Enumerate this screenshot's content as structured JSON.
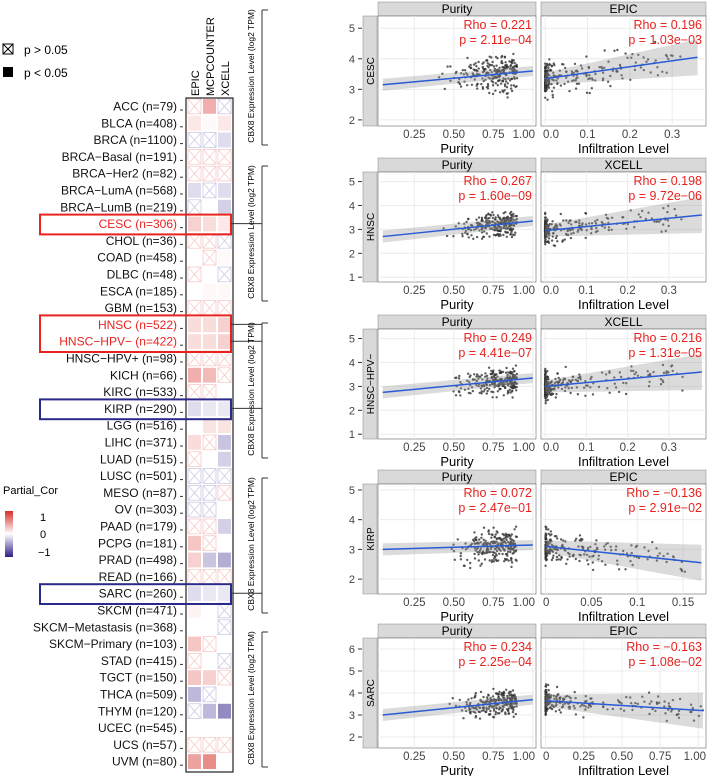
{
  "legend": {
    "ns_label": "p > 0.05",
    "sig_label": "p < 0.05",
    "scale_title": "Partial_Cor",
    "scale_ticks": [
      "1",
      "0",
      "−1"
    ]
  },
  "chart_data": [
    {
      "type": "heatmap",
      "columns": [
        "EPIC",
        "MCPCOUNTER",
        "XCELL"
      ],
      "rows": [
        {
          "label": "ACC (n=79)",
          "v": [
            0.1,
            0.35,
            -0.1
          ],
          "sig": [
            0,
            1,
            0
          ]
        },
        {
          "label": "BLCA (n=408)",
          "v": [
            0.1,
            0.02,
            0.1
          ],
          "sig": [
            1,
            1,
            1
          ]
        },
        {
          "label": "BRCA (n=1100)",
          "v": [
            -0.05,
            -0.05,
            -0.15
          ],
          "sig": [
            0,
            0,
            1
          ]
        },
        {
          "label": "BRCA−Basal (n=191)",
          "v": [
            0.05,
            0.05,
            0.05
          ],
          "sig": [
            0,
            0,
            0
          ]
        },
        {
          "label": "BRCA−Her2 (n=82)",
          "v": [
            0.05,
            0.05,
            0.05
          ],
          "sig": [
            0,
            0,
            0
          ]
        },
        {
          "label": "BRCA−LumA (n=568)",
          "v": [
            -0.15,
            -0.08,
            -0.15
          ],
          "sig": [
            1,
            0,
            1
          ]
        },
        {
          "label": "BRCA−LumB (n=219)",
          "v": [
            -0.05,
            0,
            -0.2
          ],
          "sig": [
            0,
            1,
            1
          ]
        },
        {
          "label": "CESC (n=306)",
          "v": [
            0.2,
            0.15,
            0.1
          ],
          "sig": [
            1,
            1,
            1
          ],
          "highlight": "red"
        },
        {
          "label": "CHOL (n=36)",
          "v": [
            0.2,
            0.15,
            -0.1
          ],
          "sig": [
            0,
            0,
            0
          ]
        },
        {
          "label": "COAD (n=458)",
          "v": [
            0,
            0.05,
            0.02
          ],
          "sig": [
            1,
            0,
            1
          ]
        },
        {
          "label": "DLBC (n=48)",
          "v": [
            0.05,
            0,
            -0.05
          ],
          "sig": [
            0,
            1,
            0
          ]
        },
        {
          "label": "ESCA (n=185)",
          "v": [
            0,
            0.03,
            0.03
          ],
          "sig": [
            1,
            1,
            1
          ]
        },
        {
          "label": "GBM (n=153)",
          "v": [
            0.05,
            0.05,
            0.05
          ],
          "sig": [
            0,
            0,
            0
          ]
        },
        {
          "label": "HNSC (n=522)",
          "v": [
            0.15,
            0.15,
            0.2
          ],
          "sig": [
            1,
            1,
            1
          ],
          "highlight": "red"
        },
        {
          "label": "HNSC−HPV− (n=422)",
          "v": [
            0.15,
            0.15,
            0.2
          ],
          "sig": [
            1,
            1,
            1
          ],
          "highlight": "red"
        },
        {
          "label": "HNSC−HPV+ (n=98)",
          "v": [
            0.05,
            0.05,
            0.05
          ],
          "sig": [
            0,
            0,
            0
          ]
        },
        {
          "label": "KICH (n=66)",
          "v": [
            0.35,
            0.3,
            0.1
          ],
          "sig": [
            1,
            1,
            0
          ]
        },
        {
          "label": "KIRC (n=533)",
          "v": [
            0.05,
            0.05,
            0
          ],
          "sig": [
            0,
            0,
            1
          ]
        },
        {
          "label": "KIRP (n=290)",
          "v": [
            -0.15,
            -0.1,
            -0.1
          ],
          "sig": [
            1,
            1,
            1
          ],
          "highlight": "blue"
        },
        {
          "label": "LGG (n=516)",
          "v": [
            0,
            0.12,
            0.12
          ],
          "sig": [
            1,
            1,
            1
          ]
        },
        {
          "label": "LIHC (n=371)",
          "v": [
            0.15,
            0.1,
            -0.25
          ],
          "sig": [
            1,
            0,
            1
          ]
        },
        {
          "label": "LUAD (n=515)",
          "v": [
            0.1,
            0,
            -0.2
          ],
          "sig": [
            0,
            1,
            1
          ]
        },
        {
          "label": "LUSC (n=501)",
          "v": [
            -0.05,
            -0.05,
            -0.05
          ],
          "sig": [
            0,
            0,
            0
          ]
        },
        {
          "label": "MESO (n=87)",
          "v": [
            -0.15,
            -0.15,
            0.05
          ],
          "sig": [
            0,
            0,
            0
          ]
        },
        {
          "label": "OV (n=303)",
          "v": [
            -0.05,
            -0.05,
            0
          ],
          "sig": [
            0,
            0,
            1
          ]
        },
        {
          "label": "PAAD (n=179)",
          "v": [
            0.05,
            0.05,
            -0.2
          ],
          "sig": [
            0,
            0,
            1
          ]
        },
        {
          "label": "PCPG (n=181)",
          "v": [
            0.25,
            0.2,
            0
          ],
          "sig": [
            1,
            0,
            1
          ]
        },
        {
          "label": "PRAD (n=498)",
          "v": [
            0.2,
            -0.25,
            -0.35
          ],
          "sig": [
            1,
            1,
            1
          ]
        },
        {
          "label": "READ (n=166)",
          "v": [
            0.1,
            0.1,
            0.1
          ],
          "sig": [
            0,
            0,
            0
          ]
        },
        {
          "label": "SARC (n=260)",
          "v": [
            -0.15,
            -0.1,
            -0.1
          ],
          "sig": [
            1,
            1,
            1
          ],
          "highlight": "blue"
        },
        {
          "label": "SKCM (n=471)",
          "v": [
            0.05,
            0,
            -0.05
          ],
          "sig": [
            1,
            1,
            0
          ]
        },
        {
          "label": "SKCM−Metastasis (n=368)",
          "v": [
            0,
            0,
            -0.1
          ],
          "sig": [
            1,
            1,
            0
          ]
        },
        {
          "label": "SKCM−Primary (n=103)",
          "v": [
            0.25,
            0.2,
            0
          ],
          "sig": [
            1,
            0,
            1
          ]
        },
        {
          "label": "STAD (n=415)",
          "v": [
            0.05,
            0,
            -0.05
          ],
          "sig": [
            0,
            1,
            0
          ]
        },
        {
          "label": "TGCT (n=150)",
          "v": [
            0.25,
            0.2,
            0.1
          ],
          "sig": [
            1,
            1,
            0
          ]
        },
        {
          "label": "THCA (n=509)",
          "v": [
            -0.3,
            -0.05,
            0
          ],
          "sig": [
            1,
            0,
            1
          ]
        },
        {
          "label": "THYM (n=120)",
          "v": [
            -0.1,
            -0.3,
            -0.5
          ],
          "sig": [
            0,
            1,
            1
          ]
        },
        {
          "label": "UCEC (n=545)",
          "v": [
            0,
            0,
            0
          ],
          "sig": [
            1,
            1,
            1
          ]
        },
        {
          "label": "UCS (n=57)",
          "v": [
            0.2,
            0.2,
            0.1
          ],
          "sig": [
            0,
            0,
            0
          ]
        },
        {
          "label": "UVM (n=80)",
          "v": [
            0.4,
            0.5,
            0
          ],
          "sig": [
            1,
            1,
            1
          ]
        }
      ],
      "colors": {
        "pos": "#d73027",
        "neg": "#3b2a8f"
      }
    },
    {
      "type": "scatter",
      "ylabel": "CBX8 Expression Level (log2 TPM)",
      "line_color": "#2a5bd7",
      "point_color": "#333333",
      "annot_color": "#e8231f",
      "panels": [
        {
          "cancer": "CESC",
          "ylim": [
            1.8,
            5.4
          ],
          "yticks": [
            "2",
            "3",
            "4",
            "5"
          ],
          "left": {
            "strip": "Purity",
            "xlabel": "Purity",
            "xlim": [
              0.02,
              1.02
            ],
            "xticks": [
              "0.25",
              "0.50",
              "0.75",
              "1.00"
            ],
            "rho": "Rho = 0.221",
            "p": "p = 2.11e−04",
            "fit": [
              [
                0.05,
                3.15
              ],
              [
                1.0,
                3.6
              ]
            ]
          },
          "right": {
            "strip": "EPIC",
            "xlabel": "Infiltration Level",
            "xlim": [
              -0.01,
              0.38
            ],
            "xticks": [
              "0.0",
              "0.1",
              "0.2",
              "0.3"
            ],
            "rho": "Rho = 0.196",
            "p": "p = 1.03e−03",
            "fit": [
              [
                0.0,
                3.35
              ],
              [
                0.36,
                4.05
              ]
            ]
          }
        },
        {
          "cancer": "HNSC",
          "ylim": [
            0.8,
            5.4
          ],
          "yticks": [
            "1",
            "2",
            "3",
            "4",
            "5"
          ],
          "left": {
            "strip": "Purity",
            "xlabel": "Purity",
            "xlim": [
              0.02,
              1.02
            ],
            "xticks": [
              "0.25",
              "0.50",
              "0.75",
              "1.00"
            ],
            "rho": "Rho = 0.267",
            "p": "p = 1.60e−09",
            "fit": [
              [
                0.05,
                2.7
              ],
              [
                1.0,
                3.35
              ]
            ]
          },
          "right": {
            "strip": "XCELL",
            "xlabel": "Infiltration Level",
            "xlim": [
              -0.01,
              0.39
            ],
            "xticks": [
              "0.0",
              "0.1",
              "0.2",
              "0.3"
            ],
            "rho": "Rho = 0.198",
            "p": "p = 9.72e−06",
            "fit": [
              [
                0.0,
                2.95
              ],
              [
                0.38,
                3.6
              ]
            ]
          }
        },
        {
          "cancer": "HNSC−HPV−",
          "ylim": [
            0.8,
            5.4
          ],
          "yticks": [
            "1",
            "2",
            "3",
            "4",
            "5"
          ],
          "left": {
            "strip": "Purity",
            "xlabel": "Purity",
            "xlim": [
              0.02,
              1.02
            ],
            "xticks": [
              "0.25",
              "0.50",
              "0.75",
              "1.00"
            ],
            "rho": "Rho = 0.249",
            "p": "p = 4.41e−07",
            "fit": [
              [
                0.05,
                2.75
              ],
              [
                1.0,
                3.35
              ]
            ]
          },
          "right": {
            "strip": "XCELL",
            "xlabel": "Infiltration Level",
            "xlim": [
              -0.01,
              0.39
            ],
            "xticks": [
              "0.0",
              "0.1",
              "0.2",
              "0.3"
            ],
            "rho": "Rho = 0.216",
            "p": "p = 1.31e−05",
            "fit": [
              [
                0.0,
                3.0
              ],
              [
                0.38,
                3.6
              ]
            ]
          }
        },
        {
          "cancer": "KIRP",
          "ylim": [
            1.5,
            5.2
          ],
          "yticks": [
            "2",
            "3",
            "4",
            "5"
          ],
          "left": {
            "strip": "Purity",
            "xlabel": "Purity",
            "xlim": [
              0.02,
              1.02
            ],
            "xticks": [
              "0.25",
              "0.50",
              "0.75",
              "1.00"
            ],
            "rho": "Rho = 0.072",
            "p": "p = 2.47e−01",
            "fit": [
              [
                0.05,
                3.0
              ],
              [
                1.0,
                3.15
              ]
            ]
          },
          "right": {
            "strip": "EPIC",
            "xlabel": "Infiltration Level",
            "xlim": [
              -0.005,
              0.175
            ],
            "xticks": [
              "0",
              "0.05",
              "0.1",
              "0.15"
            ],
            "rho": "Rho = −0.136",
            "p": "p = 2.91e−02",
            "fit": [
              [
                0.0,
                3.1
              ],
              [
                0.17,
                2.55
              ]
            ]
          }
        },
        {
          "cancer": "SARC",
          "ylim": [
            1.5,
            6.5
          ],
          "yticks": [
            "2",
            "3",
            "4",
            "5",
            "6"
          ],
          "left": {
            "strip": "Purity",
            "xlabel": "Purity",
            "xlim": [
              0.02,
              1.02
            ],
            "xticks": [
              "0.25",
              "0.50",
              "0.75",
              "1.00"
            ],
            "rho": "Rho = 0.234",
            "p": "p = 2.25e−04",
            "fit": [
              [
                0.05,
                3.0
              ],
              [
                1.0,
                3.7
              ]
            ]
          },
          "right": {
            "strip": "EPIC",
            "xlabel": "Infiltration Level",
            "xlim": [
              -0.03,
              1.05
            ],
            "xticks": [
              "0",
              "0.25",
              "0.50",
              "0.75",
              "1.00"
            ],
            "rho": "Rho = −0.163",
            "p": "p = 1.08e−02",
            "fit": [
              [
                0.0,
                3.65
              ],
              [
                1.03,
                3.2
              ]
            ]
          }
        }
      ]
    }
  ]
}
